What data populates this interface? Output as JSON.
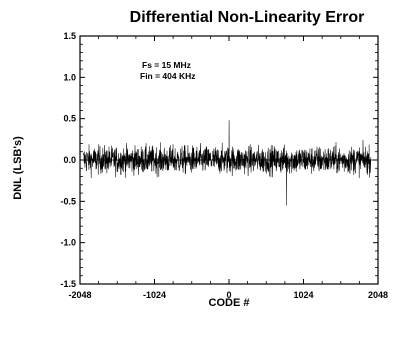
{
  "chart_data": {
    "type": "line",
    "title": "Differential Non-Linearity Error",
    "xlabel": "CODE #",
    "ylabel": "DNL (LSB's)",
    "xlim": [
      -2048,
      2048
    ],
    "ylim": [
      -1.5,
      1.5
    ],
    "x_ticks": [
      -2048,
      -1024,
      0,
      1024,
      2048
    ],
    "x_tick_labels": [
      "-2048",
      "-1024",
      "0",
      "1024",
      "2048"
    ],
    "y_ticks": [
      1.5,
      1.0,
      0.5,
      0.0,
      -0.5,
      -1.0,
      -1.5
    ],
    "y_tick_labels": [
      "1.5",
      "1.0",
      "0.5",
      "0.0",
      "-0.5",
      "-1.0",
      "-1.5"
    ],
    "annotations": [
      "Fs = 15 MHz",
      "Fin = 404 KHz"
    ],
    "grid": false,
    "series": [
      {
        "x_range": [
          -2000,
          1950
        ],
        "y_typical_range": [
          -0.25,
          0.25
        ],
        "y_peak_max": 0.48,
        "y_peak_min": -0.55
      }
    ]
  }
}
